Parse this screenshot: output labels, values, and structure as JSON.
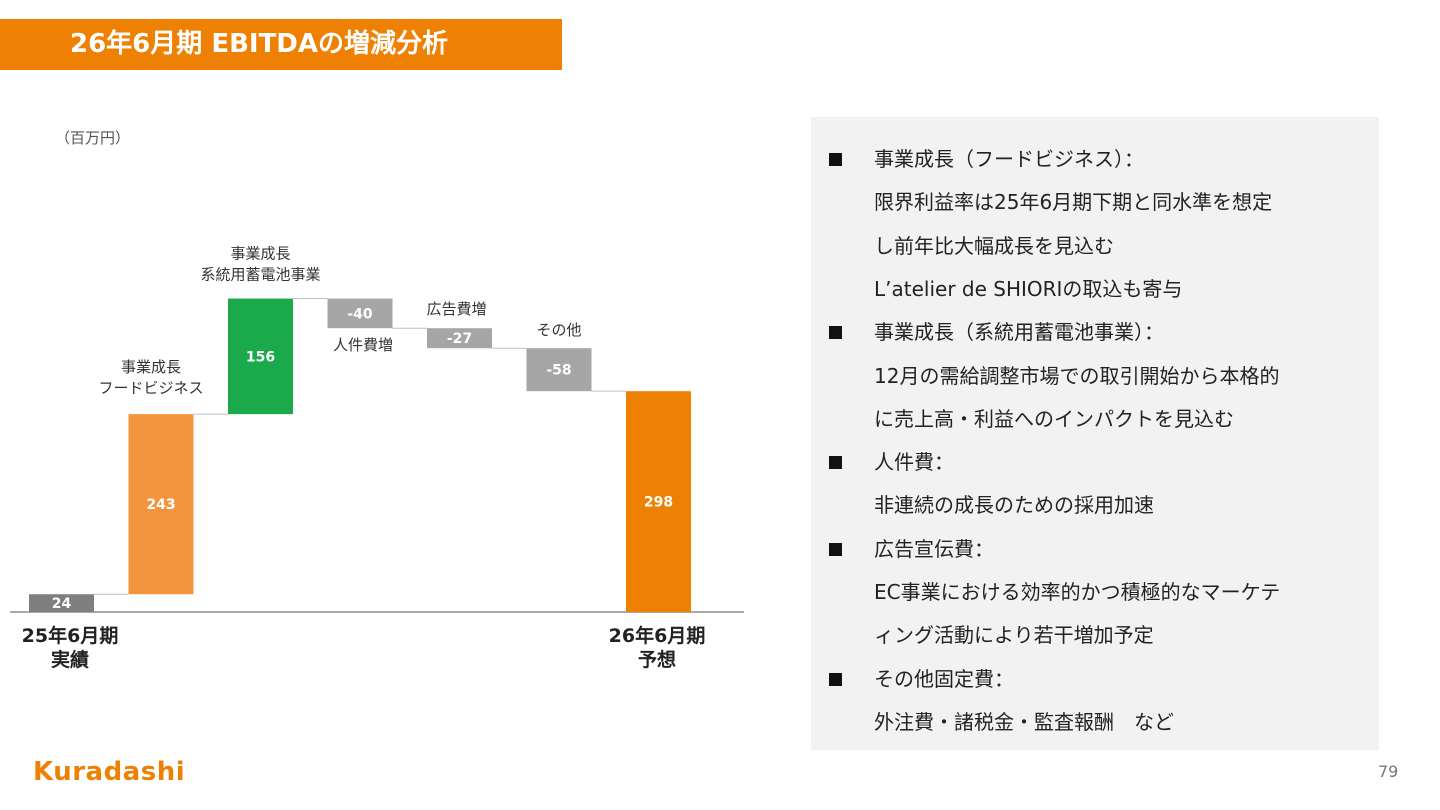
{
  "title": "26年6月期 EBITDAの増減分析",
  "unit": "（百万円）",
  "chart_data": {
    "type": "waterfall",
    "categories": [
      "25年6月期 実績",
      "事業成長 フードビジネス",
      "事業成長 系統用蓄電池事業",
      "人件費増",
      "広告費増",
      "その他",
      "26年6月期 予想"
    ],
    "values": [
      24,
      243,
      156,
      -40,
      -27,
      -58,
      298
    ],
    "value_labels": [
      "24",
      "243",
      "156",
      "-40",
      "-27",
      "-58",
      "298"
    ],
    "bar_labels": [
      "",
      "事業成長\nフードビジネス",
      "事業成長\n系統用蓄電池事業",
      "人件費増",
      "広告費増",
      "その他",
      ""
    ],
    "x_labels": [
      "25年6月期\n実績",
      "26年6月期\n予想"
    ],
    "colors": [
      "#7F7F7F",
      "#F4943F",
      "#1AAA4B",
      "#A6A6A6",
      "#A6A6A6",
      "#A6A6A6",
      "#EE8103"
    ]
  },
  "notes": [
    {
      "bullet": true,
      "text": "事業成長（フードビジネス）："
    },
    {
      "bullet": false,
      "text": "限界利益率は25年6月期下期と同水準を想定"
    },
    {
      "bullet": false,
      "text": "し前年比大幅成長を見込む"
    },
    {
      "bullet": false,
      "text": "L’atelier de SHIORIの取込も寄与"
    },
    {
      "bullet": true,
      "text": "事業成長（系統用蓄電池事業）："
    },
    {
      "bullet": false,
      "text": "12月の需給調整市場での取引開始から本格的"
    },
    {
      "bullet": false,
      "text": "に売上高・利益へのインパクトを見込む"
    },
    {
      "bullet": true,
      "text": "人件費："
    },
    {
      "bullet": false,
      "text": "非連続の成長のための採用加速"
    },
    {
      "bullet": true,
      "text": "広告宣伝費："
    },
    {
      "bullet": false,
      "text": "EC事業における効率的かつ積極的なマーケテ"
    },
    {
      "bullet": false,
      "text": "ィング活動により若干増加予定"
    },
    {
      "bullet": true,
      "text": "その他固定費："
    },
    {
      "bullet": false,
      "text": "外注費・諸税金・監査報酬　など"
    }
  ],
  "footer": {
    "logo": "Kuradashi",
    "page": "79"
  }
}
